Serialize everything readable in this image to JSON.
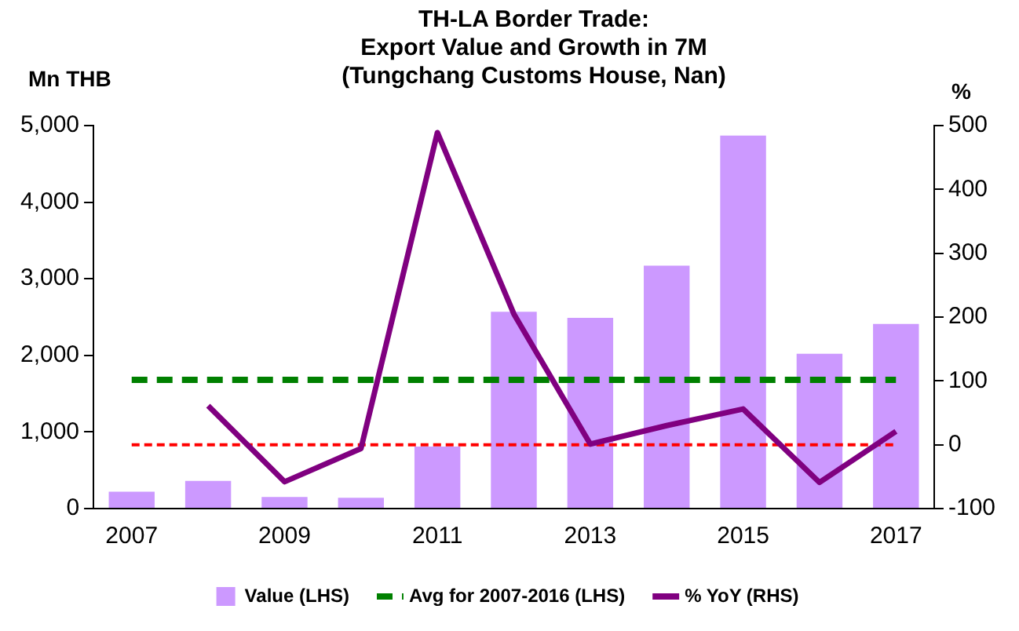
{
  "chart_data": {
    "type": "bar",
    "title": "TH-LA Border Trade:\nExport Value and Growth in 7M\n(Tungchang Customs House, Nan)",
    "ylabel": "Mn THB",
    "y2label": "%",
    "categories": [
      "2007",
      null,
      "2009",
      null,
      "2011",
      null,
      "2013",
      null,
      "2015",
      null,
      "2017"
    ],
    "series": [
      {
        "name": "Value (LHS)",
        "color": "#cc99ff",
        "values": [
          220,
          360,
          150,
          140,
          810,
          2570,
          2490,
          3170,
          4870,
          2020,
          2410
        ]
      },
      {
        "name": "% YoY (RHS)",
        "type": "line",
        "axis": "y2",
        "color": "#800080",
        "values": [
          null,
          61,
          -58,
          -6,
          489,
          205,
          1,
          30,
          56,
          -59,
          21
        ]
      }
    ],
    "ref_lines": [
      {
        "axis": "y",
        "value": 1680,
        "label": "Avg for 2007-2016 (LHS)",
        "color": "#008000",
        "line_style": "dashed"
      },
      {
        "axis": "y2",
        "value": 0,
        "color": "#ff0000",
        "line_style": "dashed"
      }
    ],
    "ylim": [
      0,
      5000
    ],
    "yticks": [
      {
        "value": 0,
        "label": "0"
      },
      {
        "value": 1000,
        "label": "1,000"
      },
      {
        "value": 2000,
        "label": "2,000"
      },
      {
        "value": 3000,
        "label": "3,000"
      },
      {
        "value": 4000,
        "label": "4,000"
      },
      {
        "value": 5000,
        "label": "5,000"
      }
    ],
    "y2lim": [
      -100,
      500
    ],
    "y2ticks": [
      -100,
      0,
      100,
      200,
      300,
      400,
      500
    ],
    "grid": false,
    "legend": "bottom",
    "marker": "none"
  }
}
